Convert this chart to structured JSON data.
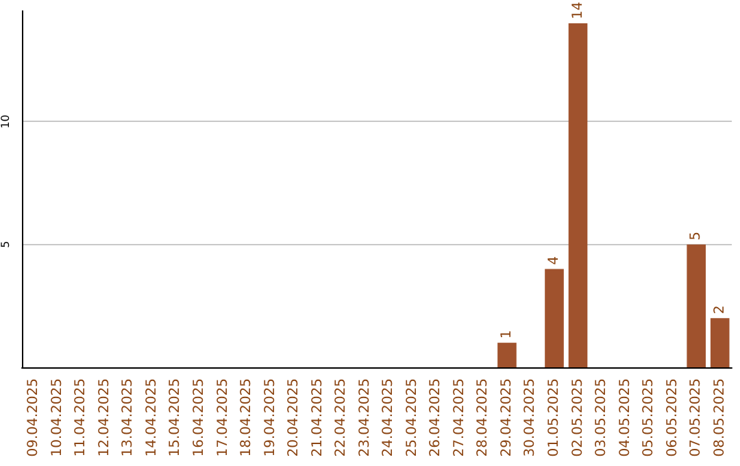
{
  "chart_data": {
    "type": "bar",
    "categories": [
      "09.04.2025",
      "10.04.2025",
      "11.04.2025",
      "12.04.2025",
      "13.04.2025",
      "14.04.2025",
      "15.04.2025",
      "16.04.2025",
      "17.04.2025",
      "18.04.2025",
      "19.04.2025",
      "20.04.2025",
      "21.04.2025",
      "22.04.2025",
      "23.04.2025",
      "24.04.2025",
      "25.04.2025",
      "26.04.2025",
      "27.04.2025",
      "28.04.2025",
      "29.04.2025",
      "30.04.2025",
      "01.05.2025",
      "02.05.2025",
      "03.05.2025",
      "04.05.2025",
      "05.05.2025",
      "06.05.2025",
      "07.05.2025",
      "08.05.2025"
    ],
    "values": [
      0,
      0,
      0,
      0,
      0,
      0,
      0,
      0,
      0,
      0,
      0,
      0,
      0,
      0,
      0,
      0,
      0,
      0,
      0,
      0,
      1,
      0,
      4,
      14,
      0,
      0,
      0,
      0,
      5,
      2
    ],
    "value_labels": [
      null,
      null,
      null,
      null,
      null,
      null,
      null,
      null,
      null,
      null,
      null,
      null,
      null,
      null,
      null,
      null,
      null,
      null,
      null,
      null,
      "1",
      null,
      "4",
      "14",
      null,
      null,
      null,
      null,
      "5",
      "2"
    ],
    "color": "#a0522d",
    "ylim": [
      0,
      14.5
    ],
    "yticks": [
      5,
      10
    ],
    "grid": "y"
  }
}
